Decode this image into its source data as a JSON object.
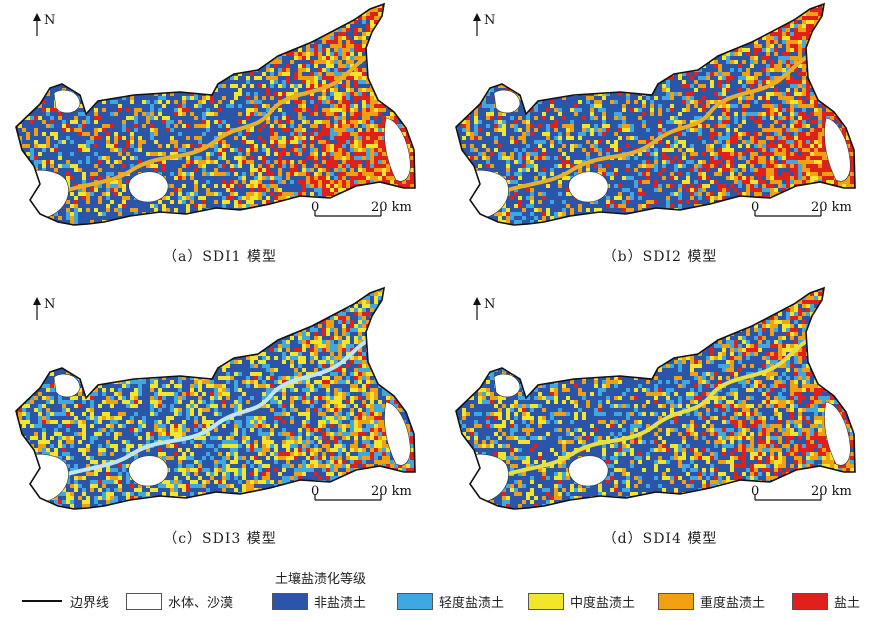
{
  "panels": [
    {
      "id": "a",
      "caption": "（a）SDI1 模型",
      "north": "N",
      "scale": {
        "zero": "0",
        "end": "20 km"
      },
      "mix": {
        "red": 0.2,
        "orange": 0.18,
        "yellow": 0.12,
        "light": 0.1
      },
      "river_color": "#e8b028"
    },
    {
      "id": "b",
      "caption": "（b）SDI2 模型",
      "north": "N",
      "scale": {
        "zero": "0",
        "end": "20 km"
      },
      "mix": {
        "red": 0.22,
        "orange": 0.18,
        "yellow": 0.1,
        "light": 0.12
      },
      "river_color": "#e8b028"
    },
    {
      "id": "c",
      "caption": "（c）SDI3 模型",
      "north": "N",
      "scale": {
        "zero": "0",
        "end": "20 km"
      },
      "mix": {
        "red": 0.08,
        "orange": 0.14,
        "yellow": 0.2,
        "light": 0.18
      },
      "river_color": "#bfe6f2"
    },
    {
      "id": "d",
      "caption": "（d）SDI4 模型",
      "north": "N",
      "scale": {
        "zero": "0",
        "end": "20 km"
      },
      "mix": {
        "red": 0.12,
        "orange": 0.16,
        "yellow": 0.14,
        "light": 0.14
      },
      "river_color": "#e8e040"
    }
  ],
  "legend": {
    "title": "土壤盐渍化等级",
    "boundary_label": "边界线",
    "water_label": "水体、沙漠",
    "classes": [
      {
        "label": "非盐渍土",
        "color": "#2a55a8"
      },
      {
        "label": "轻度盐渍土",
        "color": "#3fa8e0"
      },
      {
        "label": "中度盐渍土",
        "color": "#f2e62a"
      },
      {
        "label": "重度盐渍土",
        "color": "#f0a010"
      },
      {
        "label": "盐土",
        "color": "#e0201a"
      }
    ]
  }
}
